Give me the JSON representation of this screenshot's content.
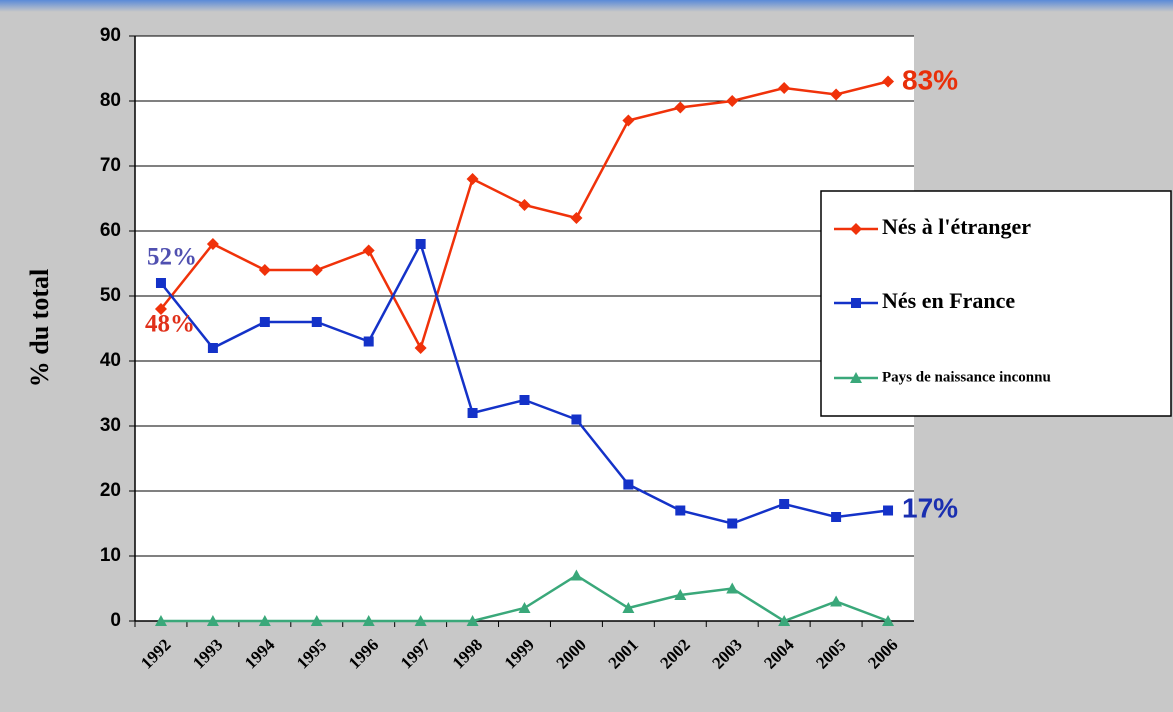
{
  "chart_data": {
    "type": "line",
    "ylabel": "% du total",
    "categories": [
      "1992",
      "1993",
      "1994",
      "1995",
      "1996",
      "1997",
      "1998",
      "1999",
      "2000",
      "2001",
      "2002",
      "2003",
      "2004",
      "2005",
      "2006"
    ],
    "series": [
      {
        "name": "Nés à l'étranger",
        "color": "#f0320a",
        "marker": "diamond",
        "values": [
          48,
          58,
          54,
          54,
          57,
          42,
          68,
          64,
          62,
          77,
          79,
          80,
          82,
          81,
          83
        ]
      },
      {
        "name": "Nés en France",
        "color": "#1432c8",
        "marker": "square",
        "values": [
          52,
          42,
          46,
          46,
          43,
          58,
          32,
          34,
          31,
          21,
          17,
          15,
          18,
          16,
          17
        ]
      },
      {
        "name": "Pays de naissance inconnu",
        "color": "#3aa87a",
        "marker": "triangle",
        "values": [
          0,
          0,
          0,
          0,
          0,
          0,
          0,
          2,
          7,
          2,
          4,
          5,
          0,
          3,
          0
        ]
      }
    ],
    "annotations": [
      {
        "text": "83%",
        "color": "#e8300a"
      },
      {
        "text": "17%",
        "color": "#1a2fb0"
      },
      {
        "text": "52%",
        "color": "#5050b0"
      },
      {
        "text": "48%",
        "color": "#e0301a"
      }
    ],
    "ylim": [
      0,
      90
    ],
    "yticks": [
      0,
      10,
      20,
      30,
      40,
      50,
      60,
      70,
      80,
      90
    ],
    "grid": true,
    "legend": "right"
  }
}
